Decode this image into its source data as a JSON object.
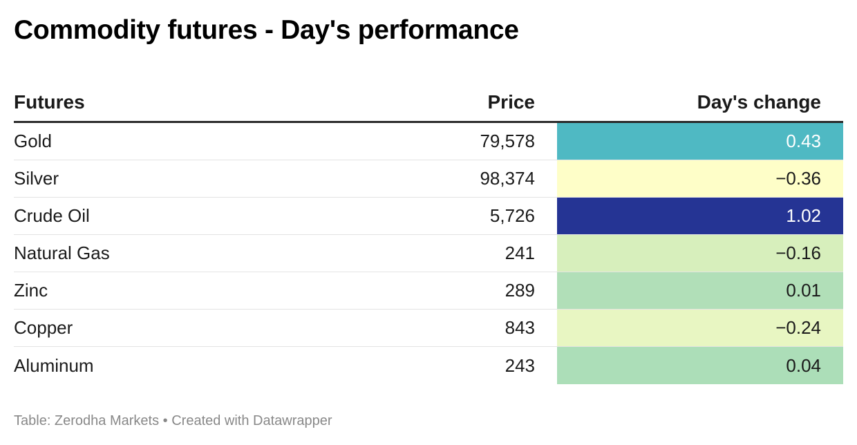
{
  "title": "Commodity futures - Day's performance",
  "footer": "Table: Zerodha Markets • Created with Datawrapper",
  "chart_data": {
    "type": "table",
    "title": "Commodity futures - Day's performance",
    "columns": [
      "Futures",
      "Price",
      "Day's change"
    ],
    "rows": [
      {
        "futures": "Gold",
        "price": "79,578",
        "change": "0.43",
        "change_value": 0.43,
        "bg": "#4fb9c3",
        "fg": "#ffffff"
      },
      {
        "futures": "Silver",
        "price": "98,374",
        "change": "−0.36",
        "change_value": -0.36,
        "bg": "#fefec8",
        "fg": "#1a1a1a"
      },
      {
        "futures": "Crude Oil",
        "price": "5,726",
        "change": "1.02",
        "change_value": 1.02,
        "bg": "#253494",
        "fg": "#ffffff"
      },
      {
        "futures": "Natural Gas",
        "price": "241",
        "change": "−0.16",
        "change_value": -0.16,
        "bg": "#d7efbc",
        "fg": "#1a1a1a"
      },
      {
        "futures": "Zinc",
        "price": "289",
        "change": "0.01",
        "change_value": 0.01,
        "bg": "#b1dfb8",
        "fg": "#1a1a1a"
      },
      {
        "futures": "Copper",
        "price": "843",
        "change": "−0.24",
        "change_value": -0.24,
        "bg": "#e8f6c2",
        "fg": "#1a1a1a"
      },
      {
        "futures": "Aluminum",
        "price": "243",
        "change": "0.04",
        "change_value": 0.04,
        "bg": "#acdeb8",
        "fg": "#1a1a1a"
      }
    ]
  }
}
